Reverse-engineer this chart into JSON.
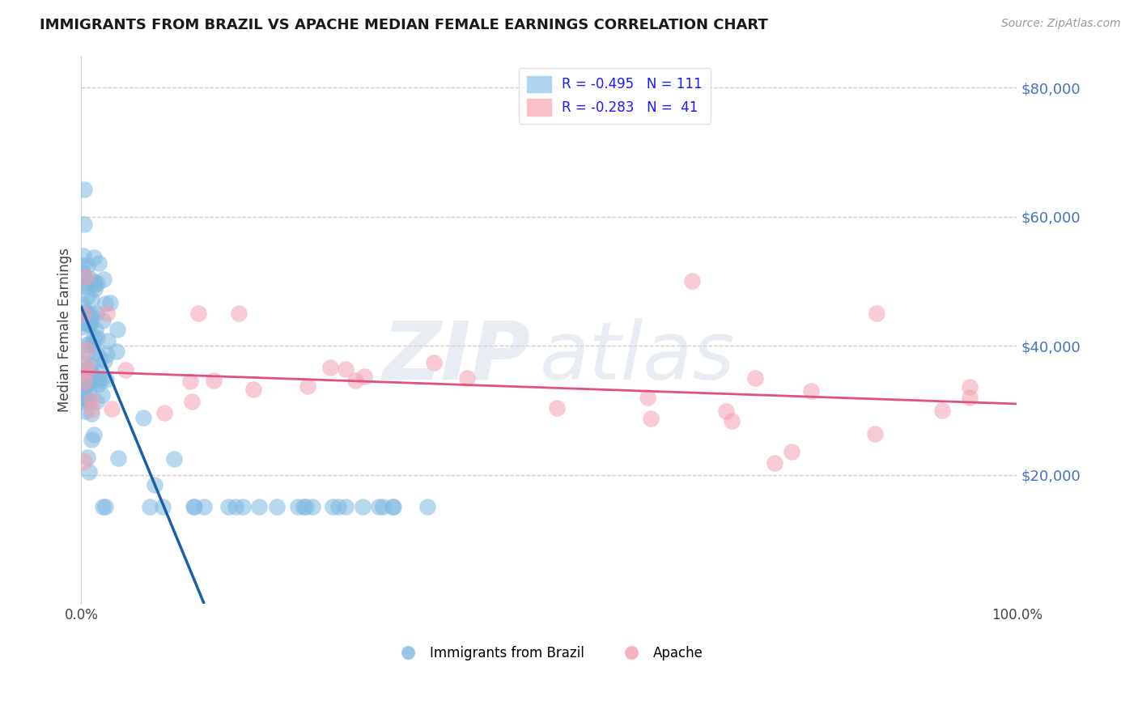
{
  "title": "IMMIGRANTS FROM BRAZIL VS APACHE MEDIAN FEMALE EARNINGS CORRELATION CHART",
  "source": "Source: ZipAtlas.com",
  "ylabel": "Median Female Earnings",
  "xlim": [
    0,
    1.0
  ],
  "ylim": [
    0,
    85000
  ],
  "yticks": [
    0,
    20000,
    40000,
    60000,
    80000
  ],
  "ytick_labels": [
    "",
    "$20,000",
    "$40,000",
    "$60,000",
    "$80,000"
  ],
  "blue_R": -0.495,
  "blue_N": 111,
  "pink_R": -0.283,
  "pink_N": 41,
  "blue_dot_color": "#7fb8e0",
  "pink_dot_color": "#f4a0b0",
  "blue_line_color": "#1a5fa8",
  "pink_line_color": "#e05080",
  "dash_color": "#c0c8d8"
}
